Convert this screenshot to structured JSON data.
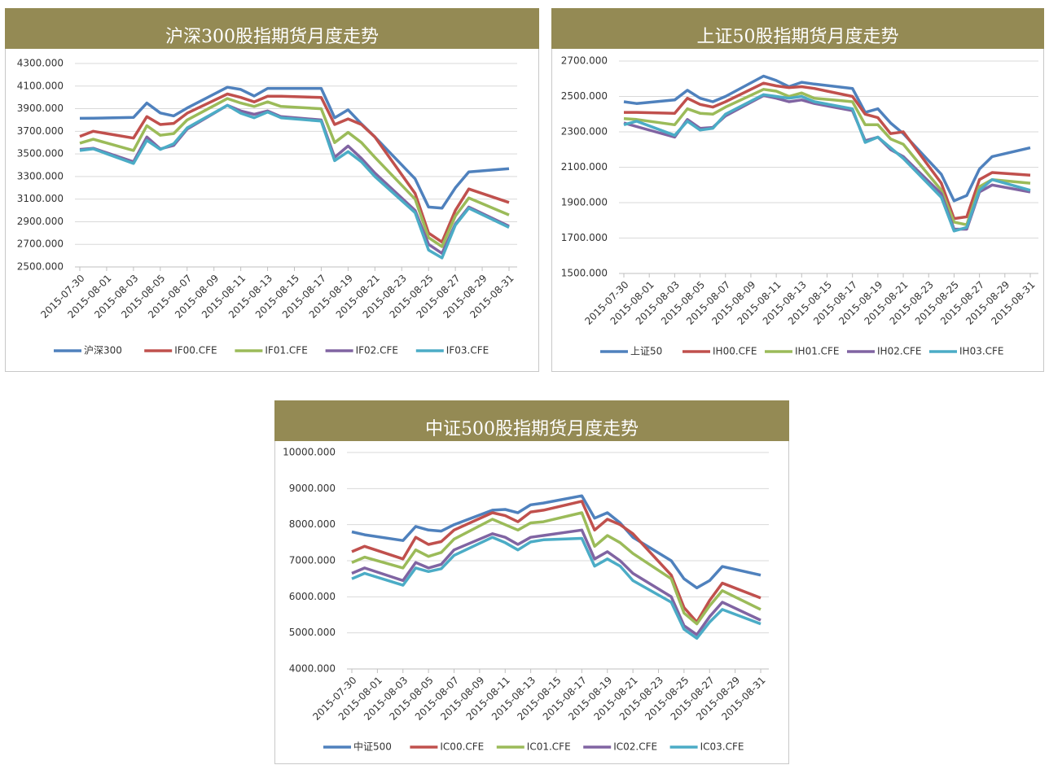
{
  "chart_data": [
    {
      "type": "line",
      "title": "沪深300股指期货月度走势",
      "x": [
        "2015-07-30",
        "2015-07-31",
        "2015-08-03",
        "2015-08-04",
        "2015-08-05",
        "2015-08-06",
        "2015-08-07",
        "2015-08-10",
        "2015-08-11",
        "2015-08-12",
        "2015-08-13",
        "2015-08-14",
        "2015-08-17",
        "2015-08-18",
        "2015-08-19",
        "2015-08-20",
        "2015-08-21",
        "2015-08-24",
        "2015-08-25",
        "2015-08-26",
        "2015-08-27",
        "2015-08-28",
        "2015-08-31"
      ],
      "xlim": [
        "2015-07-30",
        "2015-08-31"
      ],
      "xticks": [
        "2015-07-30",
        "2015-08-01",
        "2015-08-03",
        "2015-08-05",
        "2015-08-07",
        "2015-08-09",
        "2015-08-11",
        "2015-08-13",
        "2015-08-15",
        "2015-08-17",
        "2015-08-19",
        "2015-08-21",
        "2015-08-23",
        "2015-08-25",
        "2015-08-27",
        "2015-08-29",
        "2015-08-31"
      ],
      "ylim": [
        2500,
        4300
      ],
      "yticks": [
        {
          "value": 2500,
          "label": "2500.000"
        },
        {
          "value": 2700,
          "label": "2700.000"
        },
        {
          "value": 2900,
          "label": "2900.000"
        },
        {
          "value": 3100,
          "label": "3100.000"
        },
        {
          "value": 3300,
          "label": "3300.000"
        },
        {
          "value": 3500,
          "label": "3500.000"
        },
        {
          "value": 3700,
          "label": "3700.000"
        },
        {
          "value": 3900,
          "label": "3900.000"
        },
        {
          "value": 4100,
          "label": "4100.000"
        },
        {
          "value": 4300,
          "label": "4300.000"
        }
      ],
      "grid": true,
      "legend": "bottom",
      "series": [
        {
          "name": "沪深300",
          "color": "#4f81bd",
          "values": [
            3815,
            3816,
            3823,
            3950,
            3862,
            3836,
            3906,
            4090,
            4070,
            4012,
            4080,
            4080,
            4080,
            3820,
            3890,
            3765,
            3650,
            3280,
            3030,
            3020,
            3200,
            3340,
            3370
          ]
        },
        {
          "name": "IF00.CFE",
          "color": "#c0504d",
          "values": [
            3655,
            3700,
            3640,
            3830,
            3760,
            3770,
            3860,
            4030,
            4000,
            3960,
            4010,
            4010,
            4000,
            3760,
            3810,
            3760,
            3650,
            3150,
            2800,
            2720,
            3000,
            3190,
            3070
          ]
        },
        {
          "name": "IF01.CFE",
          "color": "#9bbb59",
          "values": [
            3595,
            3630,
            3530,
            3750,
            3665,
            3680,
            3800,
            3990,
            3950,
            3920,
            3960,
            3920,
            3900,
            3600,
            3690,
            3600,
            3470,
            3100,
            2760,
            2680,
            2950,
            3110,
            2960
          ]
        },
        {
          "name": "IF02.CFE",
          "color": "#8064a2",
          "values": [
            3540,
            3550,
            3430,
            3650,
            3545,
            3575,
            3720,
            3930,
            3880,
            3850,
            3880,
            3830,
            3800,
            3470,
            3570,
            3460,
            3330,
            3000,
            2700,
            2620,
            2880,
            3030,
            2860
          ]
        },
        {
          "name": "IF03.CFE",
          "color": "#4bacc6",
          "values": [
            3530,
            3545,
            3415,
            3620,
            3540,
            3590,
            3730,
            3930,
            3860,
            3820,
            3870,
            3820,
            3790,
            3440,
            3520,
            3430,
            3300,
            2980,
            2650,
            2580,
            2870,
            3020,
            2850
          ]
        }
      ]
    },
    {
      "type": "line",
      "title": "上证50股指期货月度走势",
      "x": [
        "2015-07-30",
        "2015-07-31",
        "2015-08-03",
        "2015-08-04",
        "2015-08-05",
        "2015-08-06",
        "2015-08-07",
        "2015-08-10",
        "2015-08-11",
        "2015-08-12",
        "2015-08-13",
        "2015-08-14",
        "2015-08-17",
        "2015-08-18",
        "2015-08-19",
        "2015-08-20",
        "2015-08-21",
        "2015-08-24",
        "2015-08-25",
        "2015-08-26",
        "2015-08-27",
        "2015-08-28",
        "2015-08-31"
      ],
      "xlim": [
        "2015-07-30",
        "2015-08-31"
      ],
      "xticks": [
        "2015-07-30",
        "2015-08-01",
        "2015-08-03",
        "2015-08-05",
        "2015-08-07",
        "2015-08-09",
        "2015-08-11",
        "2015-08-13",
        "2015-08-15",
        "2015-08-17",
        "2015-08-19",
        "2015-08-21",
        "2015-08-23",
        "2015-08-25",
        "2015-08-27",
        "2015-08-29",
        "2015-08-31"
      ],
      "ylim": [
        1500,
        2700
      ],
      "yticks": [
        {
          "value": 1500,
          "label": "1500.000"
        },
        {
          "value": 1700,
          "label": "1700.000"
        },
        {
          "value": 1900,
          "label": "1900.000"
        },
        {
          "value": 2100,
          "label": "2100.000"
        },
        {
          "value": 2300,
          "label": "2300.000"
        },
        {
          "value": 2500,
          "label": "2500.000"
        },
        {
          "value": 2700,
          "label": "2700.000"
        }
      ],
      "grid": true,
      "legend": "bottom",
      "series": [
        {
          "name": "上证50",
          "color": "#4f81bd",
          "values": [
            2470,
            2460,
            2480,
            2535,
            2490,
            2470,
            2500,
            2615,
            2590,
            2555,
            2580,
            2570,
            2545,
            2410,
            2430,
            2350,
            2290,
            2060,
            1910,
            1940,
            2090,
            2160,
            2210
          ]
        },
        {
          "name": "IH00.CFE",
          "color": "#c0504d",
          "values": [
            2410,
            2410,
            2405,
            2490,
            2455,
            2440,
            2470,
            2575,
            2560,
            2550,
            2555,
            2545,
            2500,
            2400,
            2380,
            2290,
            2300,
            2010,
            1810,
            1820,
            2030,
            2070,
            2055
          ]
        },
        {
          "name": "IH01.CFE",
          "color": "#9bbb59",
          "values": [
            2375,
            2370,
            2340,
            2430,
            2405,
            2400,
            2440,
            2540,
            2530,
            2500,
            2520,
            2490,
            2470,
            2340,
            2340,
            2260,
            2230,
            1970,
            1790,
            1775,
            1990,
            2030,
            2010
          ]
        },
        {
          "name": "IH02.CFE",
          "color": "#8064a2",
          "values": [
            2350,
            2330,
            2270,
            2370,
            2320,
            2325,
            2390,
            2505,
            2490,
            2470,
            2480,
            2460,
            2420,
            2250,
            2270,
            2200,
            2160,
            1950,
            1750,
            1750,
            1960,
            2000,
            1960
          ]
        },
        {
          "name": "IH03.CFE",
          "color": "#4bacc6",
          "values": [
            2340,
            2360,
            2280,
            2360,
            2310,
            2320,
            2400,
            2510,
            2500,
            2490,
            2500,
            2470,
            2430,
            2240,
            2270,
            2210,
            2150,
            1930,
            1740,
            1760,
            1970,
            2030,
            1970
          ]
        }
      ]
    },
    {
      "type": "line",
      "title": "中证500股指期货月度走势",
      "x": [
        "2015-07-30",
        "2015-07-31",
        "2015-08-03",
        "2015-08-04",
        "2015-08-05",
        "2015-08-06",
        "2015-08-07",
        "2015-08-10",
        "2015-08-11",
        "2015-08-12",
        "2015-08-13",
        "2015-08-14",
        "2015-08-17",
        "2015-08-18",
        "2015-08-19",
        "2015-08-20",
        "2015-08-21",
        "2015-08-24",
        "2015-08-25",
        "2015-08-26",
        "2015-08-27",
        "2015-08-28",
        "2015-08-31"
      ],
      "xlim": [
        "2015-07-30",
        "2015-08-31"
      ],
      "xticks": [
        "2015-07-30",
        "2015-08-01",
        "2015-08-03",
        "2015-08-05",
        "2015-08-07",
        "2015-08-09",
        "2015-08-11",
        "2015-08-13",
        "2015-08-15",
        "2015-08-17",
        "2015-08-19",
        "2015-08-21",
        "2015-08-23",
        "2015-08-25",
        "2015-08-27",
        "2015-08-29",
        "2015-08-31"
      ],
      "ylim": [
        4000,
        10000
      ],
      "yticks": [
        {
          "value": 4000,
          "label": "4000.000"
        },
        {
          "value": 5000,
          "label": "5000.000"
        },
        {
          "value": 6000,
          "label": "6000.000"
        },
        {
          "value": 7000,
          "label": "7000.000"
        },
        {
          "value": 8000,
          "label": "8000.000"
        },
        {
          "value": 9000,
          "label": "9000.000"
        },
        {
          "value": 10000,
          "label": "10000.000"
        }
      ],
      "grid": true,
      "legend": "bottom",
      "series": [
        {
          "name": "中证500",
          "color": "#4f81bd",
          "values": [
            7800,
            7720,
            7560,
            7950,
            7850,
            7820,
            8000,
            8400,
            8420,
            8330,
            8550,
            8600,
            8800,
            8180,
            8330,
            8050,
            7650,
            7000,
            6500,
            6250,
            6450,
            6840,
            6600
          ]
        },
        {
          "name": "IC00.CFE",
          "color": "#c0504d",
          "values": [
            7250,
            7400,
            7050,
            7650,
            7450,
            7530,
            7850,
            8330,
            8250,
            8080,
            8350,
            8400,
            8650,
            7850,
            8150,
            8000,
            7750,
            6600,
            5700,
            5300,
            5900,
            6380,
            5970
          ]
        },
        {
          "name": "IC01.CFE",
          "color": "#9bbb59",
          "values": [
            6950,
            7100,
            6800,
            7300,
            7120,
            7230,
            7600,
            8150,
            8000,
            7850,
            8050,
            8080,
            8330,
            7400,
            7700,
            7500,
            7200,
            6500,
            5550,
            5250,
            5750,
            6170,
            5650
          ]
        },
        {
          "name": "IC02.CFE",
          "color": "#8064a2",
          "values": [
            6650,
            6800,
            6450,
            6950,
            6800,
            6900,
            7300,
            7750,
            7650,
            7450,
            7650,
            7700,
            7850,
            7050,
            7250,
            7000,
            6650,
            6000,
            5200,
            4950,
            5450,
            5850,
            5350
          ]
        },
        {
          "name": "IC03.CFE",
          "color": "#4bacc6",
          "values": [
            6500,
            6650,
            6320,
            6800,
            6700,
            6780,
            7150,
            7650,
            7500,
            7300,
            7520,
            7580,
            7620,
            6850,
            7050,
            6850,
            6450,
            5850,
            5100,
            4850,
            5300,
            5650,
            5250
          ]
        }
      ]
    }
  ]
}
